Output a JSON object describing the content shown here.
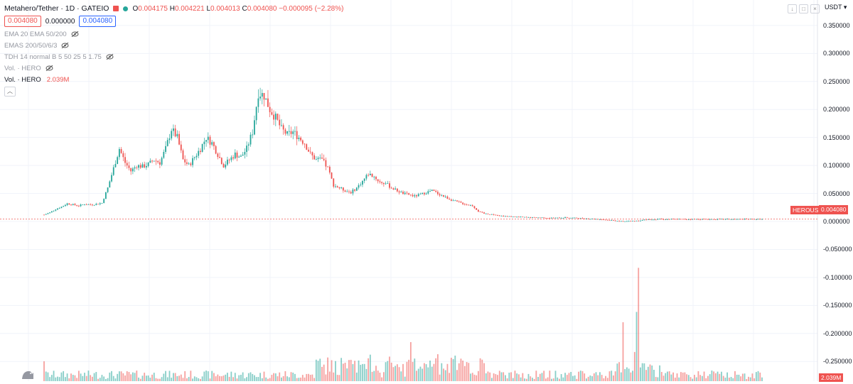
{
  "header": {
    "symbol_title": "Metahero/Tether · 1D · GATEIO",
    "ohlc": {
      "o_label": "O",
      "o_value": "0.004175",
      "h_label": "H",
      "h_value": "0.004221",
      "l_label": "L",
      "l_value": "0.004013",
      "c_label": "C",
      "c_value": "0.004080",
      "change": "−0.000095 (−2.28%)"
    },
    "bid": "0.004080",
    "spread": "0.000000",
    "ask": "0.004080"
  },
  "indicators": [
    {
      "label": "EMA 20 EMA 50/200",
      "visible_icon": "eye-crossed-icon"
    },
    {
      "label": "EMAS 200/50/6/3",
      "visible_icon": "eye-crossed-icon"
    },
    {
      "label": "TDH 14 normal B 5 50 25 5 1.75",
      "visible_icon": "eye-crossed-icon"
    },
    {
      "label": "Vol. · HERO",
      "visible_icon": "eye-crossed-icon"
    }
  ],
  "volume_legend": {
    "label": "Vol. · HERO",
    "value": "2.039M"
  },
  "collapse_icon": "chevron-up-icon",
  "currency_selector": "USDT ▾",
  "price_axis": [
    "0.350000",
    "0.300000",
    "0.250000",
    "0.200000",
    "0.150000",
    "0.100000",
    "0.050000",
    "0.000000",
    "-0.050000",
    "-0.100000",
    "-0.150000",
    "-0.200000",
    "-0.250000"
  ],
  "current_price_tag": {
    "symbol": "HEROUSDT",
    "price": "0.004080"
  },
  "volume_tag": "2.039M",
  "colors": {
    "up": "#26a69a",
    "down": "#ef5350",
    "grid": "#f0f3fa"
  },
  "chart_data": {
    "type": "candlestick",
    "ylim": [
      -0.27,
      0.36
    ],
    "price_series": [
      [
        0,
        0.012
      ],
      [
        3,
        0.016
      ],
      [
        6,
        0.022
      ],
      [
        9,
        0.026
      ],
      [
        12,
        0.032
      ],
      [
        15,
        0.03
      ],
      [
        18,
        0.028
      ],
      [
        21,
        0.031
      ],
      [
        24,
        0.03
      ],
      [
        27,
        0.031
      ],
      [
        30,
        0.033
      ],
      [
        33,
        0.06
      ],
      [
        36,
        0.095
      ],
      [
        39,
        0.13
      ],
      [
        42,
        0.105
      ],
      [
        45,
        0.09
      ],
      [
        48,
        0.1
      ],
      [
        51,
        0.098
      ],
      [
        54,
        0.102
      ],
      [
        57,
        0.11
      ],
      [
        60,
        0.105
      ],
      [
        63,
        0.13
      ],
      [
        66,
        0.165
      ],
      [
        69,
        0.15
      ],
      [
        72,
        0.11
      ],
      [
        75,
        0.1
      ],
      [
        78,
        0.115
      ],
      [
        81,
        0.13
      ],
      [
        84,
        0.15
      ],
      [
        87,
        0.14
      ],
      [
        90,
        0.12
      ],
      [
        93,
        0.1
      ],
      [
        96,
        0.11
      ],
      [
        99,
        0.12
      ],
      [
        102,
        0.115
      ],
      [
        105,
        0.13
      ],
      [
        108,
        0.16
      ],
      [
        111,
        0.23
      ],
      [
        114,
        0.225
      ],
      [
        117,
        0.2
      ],
      [
        120,
        0.185
      ],
      [
        123,
        0.165
      ],
      [
        126,
        0.155
      ],
      [
        129,
        0.16
      ],
      [
        132,
        0.15
      ],
      [
        135,
        0.14
      ],
      [
        138,
        0.12
      ],
      [
        141,
        0.11
      ],
      [
        144,
        0.11
      ],
      [
        147,
        0.095
      ],
      [
        150,
        0.065
      ],
      [
        153,
        0.06
      ],
      [
        156,
        0.055
      ],
      [
        159,
        0.052
      ],
      [
        162,
        0.06
      ],
      [
        165,
        0.072
      ],
      [
        168,
        0.085
      ],
      [
        171,
        0.08
      ],
      [
        174,
        0.07
      ],
      [
        177,
        0.068
      ],
      [
        180,
        0.06
      ],
      [
        183,
        0.055
      ],
      [
        186,
        0.05
      ],
      [
        189,
        0.048
      ],
      [
        192,
        0.045
      ],
      [
        195,
        0.048
      ],
      [
        198,
        0.052
      ],
      [
        201,
        0.055
      ],
      [
        204,
        0.05
      ],
      [
        207,
        0.045
      ],
      [
        210,
        0.04
      ],
      [
        213,
        0.036
      ],
      [
        216,
        0.033
      ],
      [
        219,
        0.03
      ],
      [
        222,
        0.028
      ],
      [
        225,
        0.018
      ],
      [
        228,
        0.014
      ],
      [
        231,
        0.013
      ],
      [
        234,
        0.012
      ],
      [
        237,
        0.01
      ],
      [
        240,
        0.009
      ],
      [
        246,
        0.008
      ],
      [
        252,
        0.007
      ],
      [
        258,
        0.007
      ],
      [
        264,
        0.006
      ],
      [
        270,
        0.007
      ],
      [
        276,
        0.006
      ],
      [
        282,
        0.005
      ],
      [
        288,
        0.004
      ],
      [
        294,
        0.002
      ],
      [
        300,
        0.0
      ],
      [
        306,
        0.001
      ],
      [
        312,
        0.003
      ],
      [
        318,
        0.004
      ],
      [
        324,
        0.004
      ],
      [
        330,
        0.004
      ],
      [
        336,
        0.004
      ],
      [
        342,
        0.004
      ],
      [
        348,
        0.004
      ],
      [
        354,
        0.004
      ],
      [
        360,
        0.004
      ],
      [
        366,
        0.004
      ],
      [
        372,
        0.0041
      ]
    ]
  }
}
